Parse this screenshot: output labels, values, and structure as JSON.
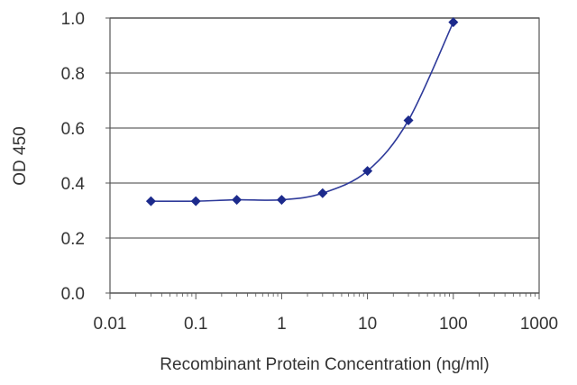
{
  "chart_data": {
    "type": "line",
    "xscale": "log",
    "xlabel": "Recombinant Protein Concentration (ng/ml)",
    "ylabel": "OD 450",
    "xlim": [
      0.01,
      1000
    ],
    "ylim": [
      0.0,
      1.0
    ],
    "xticks": [
      "0.01",
      "0.1",
      "1",
      "10",
      "100",
      "1000"
    ],
    "yticks": [
      "0.0",
      "0.2",
      "0.4",
      "0.6",
      "0.8",
      "1.0"
    ],
    "grid": "horizontal",
    "series": [
      {
        "x": [
          0.03,
          0.1,
          0.3,
          1,
          3,
          10,
          30,
          100
        ],
        "y": [
          0.334,
          0.334,
          0.339,
          0.339,
          0.363,
          0.444,
          0.628,
          0.985
        ]
      }
    ],
    "colors": {
      "line": "#2e3a9a",
      "marker": "#1c2a8c",
      "grid": "#7f7f7f",
      "frame": "#555555"
    }
  }
}
